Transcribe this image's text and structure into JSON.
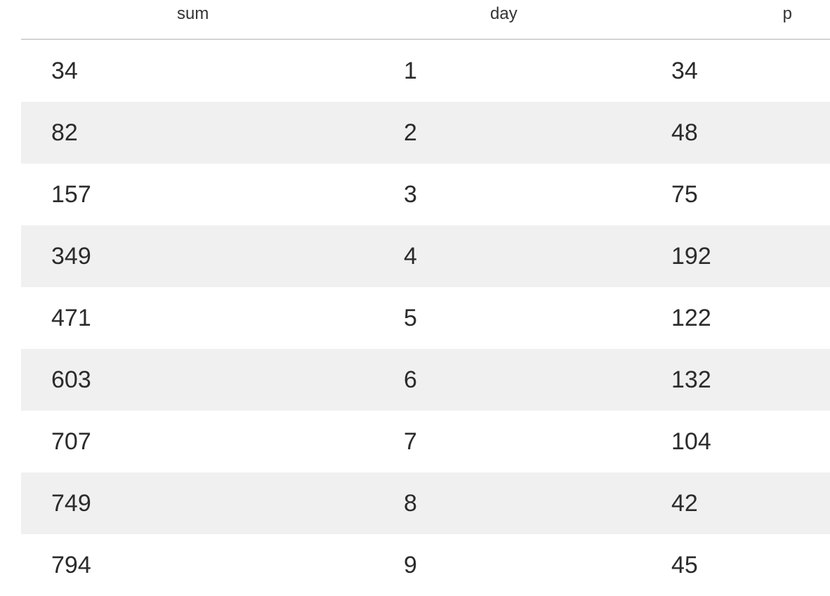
{
  "table": {
    "columns": [
      "sum",
      "day",
      "p"
    ],
    "rows": [
      {
        "sum": "34",
        "day": "1",
        "p": "34"
      },
      {
        "sum": "82",
        "day": "2",
        "p": "48"
      },
      {
        "sum": "157",
        "day": "3",
        "p": "75"
      },
      {
        "sum": "349",
        "day": "4",
        "p": "192"
      },
      {
        "sum": "471",
        "day": "5",
        "p": "122"
      },
      {
        "sum": "603",
        "day": "6",
        "p": "132"
      },
      {
        "sum": "707",
        "day": "7",
        "p": "104"
      },
      {
        "sum": "749",
        "day": "8",
        "p": "42"
      },
      {
        "sum": "794",
        "day": "9",
        "p": "45"
      }
    ]
  }
}
